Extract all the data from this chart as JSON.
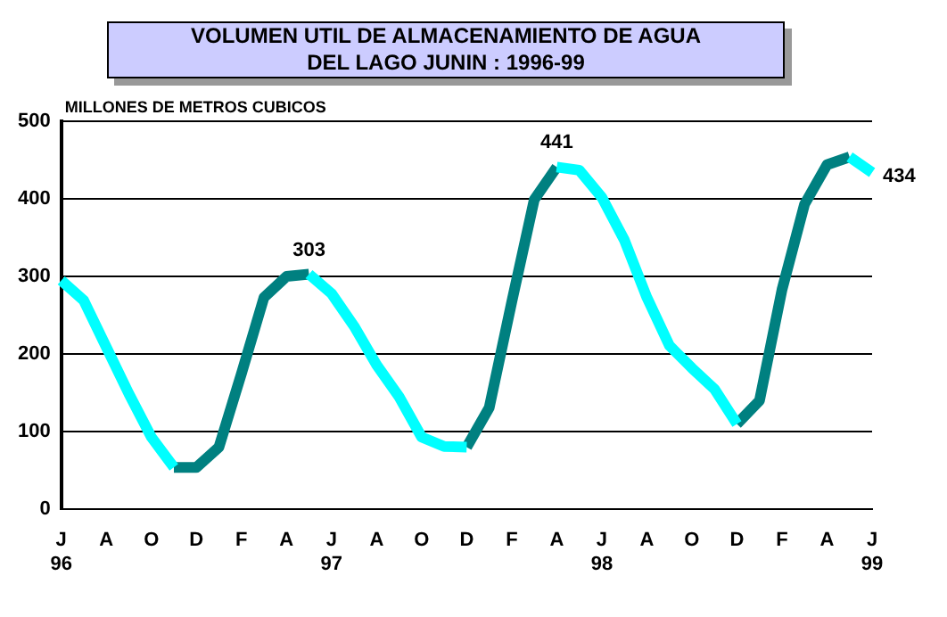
{
  "chart_data": {
    "type": "line",
    "title": "VOLUMEN UTIL DE ALMACENAMIENTO DE AGUA\nDEL LAGO JUNIN : 1996-99",
    "ylabel": "MILLONES DE METROS CUBICOS",
    "categories": [
      "J\n96",
      null,
      "A",
      null,
      "O",
      null,
      "D",
      null,
      "F",
      null,
      "A",
      null,
      "J\n97",
      null,
      "A",
      null,
      "O",
      null,
      "D",
      null,
      "F",
      null,
      "A",
      null,
      "J\n98",
      null,
      "A",
      null,
      "O",
      null,
      "D",
      null,
      "F",
      null,
      "A",
      null,
      "J\n99"
    ],
    "series": [
      {
        "color": "#00ffff",
        "values": [
          295,
          269,
          209,
          149,
          93,
          54,
          null,
          null,
          null,
          null,
          null,
          303,
          278,
          236,
          186,
          145,
          93,
          81,
          80,
          null,
          null,
          null,
          441,
          437,
          402,
          347,
          273,
          211,
          182,
          155,
          110,
          null,
          null,
          null,
          null,
          454,
          434
        ],
        "value_labels": [
          null,
          null,
          null,
          null,
          null,
          null,
          null,
          null,
          null,
          null,
          null,
          "303",
          null,
          null,
          null,
          null,
          null,
          null,
          null,
          null,
          null,
          null,
          "441",
          null,
          null,
          null,
          null,
          null,
          null,
          null,
          null,
          null,
          null,
          null,
          null,
          null,
          "434"
        ]
      },
      {
        "color": "#008080",
        "values": [
          null,
          null,
          null,
          null,
          null,
          54,
          54,
          80,
          175,
          273,
          300,
          303,
          null,
          null,
          null,
          null,
          null,
          null,
          80,
          131,
          267,
          399,
          441,
          null,
          null,
          null,
          null,
          null,
          null,
          null,
          110,
          140,
          283,
          393,
          444,
          454,
          null
        ]
      }
    ],
    "ylim": [
      0,
      500
    ],
    "yticks": [
      0,
      100,
      200,
      300,
      400,
      500
    ],
    "grid": "y",
    "legend": false,
    "marker": "none"
  }
}
